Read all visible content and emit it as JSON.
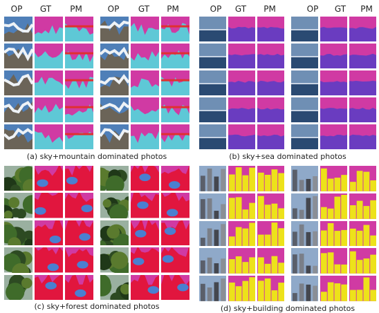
{
  "figure": {
    "column_headers": [
      "OP",
      "GT",
      "PM"
    ],
    "colors": {
      "sky": "#d03aa3",
      "mountain": "#5ec8d6",
      "sea": "#6a3cc0",
      "forest": "#e1163e",
      "forest_blue": "#4a7fd0",
      "building": "#ede21a",
      "sand": "#f0b020",
      "grass": "#58c28a"
    },
    "panels": [
      {
        "id": "a",
        "caption": "(a) sky+mountain dominated photos",
        "class": "mountain"
      },
      {
        "id": "b",
        "caption": "(b) sky+sea dominated photos",
        "class": "sea"
      },
      {
        "id": "c",
        "caption": "(c) sky+forest dominated photos",
        "class": "forest"
      },
      {
        "id": "d",
        "caption": "(d) sky+building dominated photos",
        "class": "building"
      }
    ]
  }
}
